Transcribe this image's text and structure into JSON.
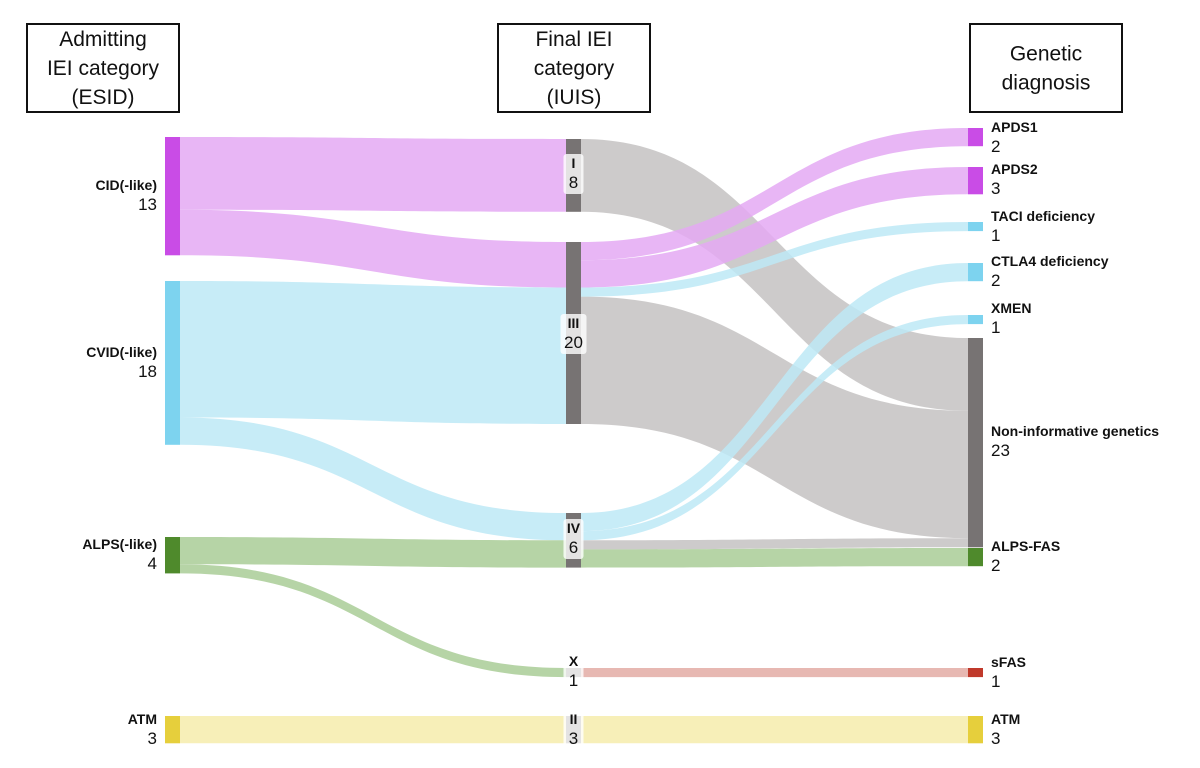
{
  "headers": {
    "left": [
      "Admitting",
      "IEI category",
      "(ESID)"
    ],
    "middle": [
      "Final IEI",
      "category",
      "(IUIS)"
    ],
    "right": [
      "Genetic",
      "diagnosis"
    ]
  },
  "colors": {
    "cid": "#c94ce6",
    "cid_flow": "#e4a9f3",
    "cvid": "#7dd3ef",
    "cvid_flow": "#bde9f6",
    "alps": "#4f8a2c",
    "alps_flow": "#a9cc97",
    "atm": "#e6cf3c",
    "atm_flow": "#f6ecac",
    "middle_node": "#777373",
    "gray_flow": "#c4c2c2",
    "sfas": "#c0392b",
    "sfas_flow": "#e3aba5"
  },
  "left_nodes": [
    {
      "id": "cid",
      "name": "CID(-like)",
      "count": "13"
    },
    {
      "id": "cvid",
      "name": "CVID(-like)",
      "count": "18"
    },
    {
      "id": "alps",
      "name": "ALPS(-like)",
      "count": "4"
    },
    {
      "id": "atm",
      "name": "ATM",
      "count": "3"
    }
  ],
  "middle_nodes": [
    {
      "id": "I",
      "name": "I",
      "count": "8"
    },
    {
      "id": "III",
      "name": "III",
      "count": "20"
    },
    {
      "id": "IV",
      "name": "IV",
      "count": "6"
    },
    {
      "id": "X",
      "name": "X",
      "count": "1"
    },
    {
      "id": "II",
      "name": "II",
      "count": "3"
    }
  ],
  "right_nodes": [
    {
      "id": "apds1",
      "name": "APDS1",
      "count": "2"
    },
    {
      "id": "apds2",
      "name": "APDS2",
      "count": "3"
    },
    {
      "id": "taci",
      "name": "TACI deficiency",
      "count": "1"
    },
    {
      "id": "ctla4",
      "name": "CTLA4 deficiency",
      "count": "2"
    },
    {
      "id": "xmen",
      "name": "XMEN",
      "count": "1"
    },
    {
      "id": "noninf",
      "name": "Non-informative genetics",
      "count": "23"
    },
    {
      "id": "alpsfas",
      "name": "ALPS-FAS",
      "count": "2"
    },
    {
      "id": "sfas",
      "name": "sFAS",
      "count": "1"
    },
    {
      "id": "atm_r",
      "name": "ATM",
      "count": "3"
    }
  ],
  "flows": [
    {
      "id": "cid-I",
      "from": "cid",
      "to": "I",
      "value": 8
    },
    {
      "id": "cid-III",
      "from": "cid",
      "to": "III",
      "value": 5
    },
    {
      "id": "cvid-III",
      "from": "cvid",
      "to": "III",
      "value": 15
    },
    {
      "id": "cvid-IV",
      "from": "cvid",
      "to": "IV",
      "value": 3
    },
    {
      "id": "alps-IV",
      "from": "alps",
      "to": "IV",
      "value": 3
    },
    {
      "id": "alps-X",
      "from": "alps",
      "to": "X",
      "value": 1
    },
    {
      "id": "atm-II",
      "from": "atm",
      "to": "II",
      "value": 3
    },
    {
      "id": "I-noninf",
      "from": "I",
      "to": "noninf",
      "value": 8
    },
    {
      "id": "III-apds1",
      "from": "III",
      "to": "apds1",
      "value": 2
    },
    {
      "id": "III-apds2",
      "from": "III",
      "to": "apds2",
      "value": 3
    },
    {
      "id": "III-taci",
      "from": "III",
      "to": "taci",
      "value": 1
    },
    {
      "id": "III-noninf",
      "from": "III",
      "to": "noninf",
      "value": 14
    },
    {
      "id": "IV-ctla4",
      "from": "IV",
      "to": "ctla4",
      "value": 2
    },
    {
      "id": "IV-xmen",
      "from": "IV",
      "to": "xmen",
      "value": 1
    },
    {
      "id": "IV-noninf",
      "from": "IV",
      "to": "noninf",
      "value": 1
    },
    {
      "id": "IV-alpsfas",
      "from": "IV",
      "to": "alpsfas",
      "value": 2
    },
    {
      "id": "X-sfas",
      "from": "X",
      "to": "sfas",
      "value": 1
    },
    {
      "id": "II-atm",
      "from": "II",
      "to": "atm_r",
      "value": 3
    }
  ]
}
